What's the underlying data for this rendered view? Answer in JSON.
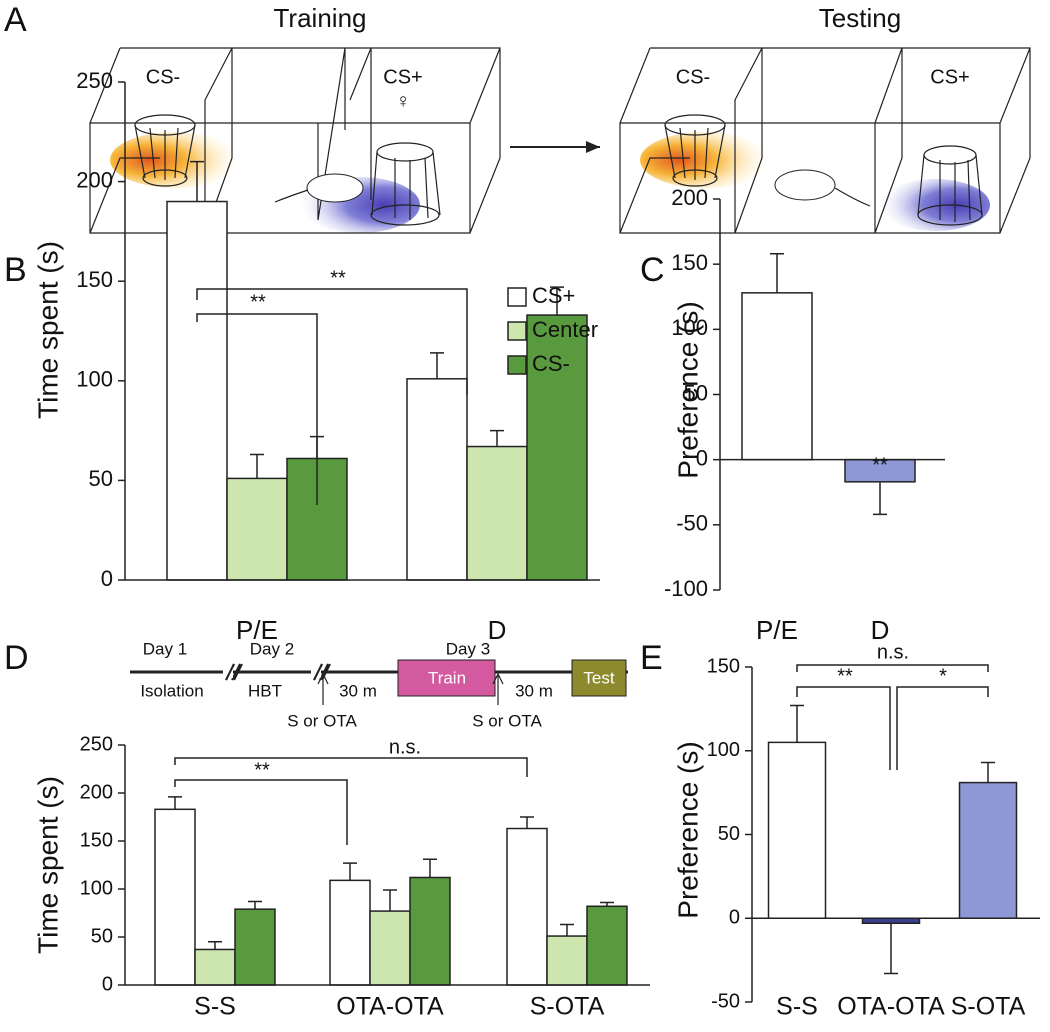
{
  "panel_labels": [
    "A",
    "B",
    "C",
    "D",
    "E"
  ],
  "diagram": {
    "title_training": "Training",
    "title_testing": "Testing",
    "training_cs_minus": "CS-",
    "training_cs_plus": "CS+",
    "female_symbol": "♀",
    "testing_cs_minus": "CS-",
    "testing_cs_plus": "CS+"
  },
  "timeline": {
    "day1": "Day 1",
    "day2": "Day 2",
    "day3": "Day 3",
    "isolation": "Isolation",
    "hbt": "HBT",
    "injection1": "S or OTA",
    "wait1": "30 m",
    "train": "Train",
    "wait2": "30 m",
    "injection2": "S or OTA",
    "test": "Test"
  },
  "chart_data": [
    {
      "type": "bar",
      "ylabel": "Time spent (s)",
      "categories": [
        "P/E",
        "D"
      ],
      "series": [
        {
          "name": "CS+",
          "color": "#ffffff",
          "values": [
            190,
            101
          ],
          "errors": [
            20,
            13
          ]
        },
        {
          "name": "Center",
          "color": "#cde6b0",
          "values": [
            51,
            67
          ],
          "errors": [
            12,
            8
          ]
        },
        {
          "name": "CS-",
          "color": "#5a9a3e",
          "values": [
            61,
            133
          ],
          "errors": [
            11,
            14
          ]
        }
      ],
      "ylim": [
        0,
        250
      ],
      "yticks": [
        0,
        50,
        100,
        150,
        200,
        250
      ],
      "legend": "top-right",
      "annotations": [
        "**",
        "**"
      ]
    },
    {
      "type": "bar",
      "ylabel": "Preference (s)",
      "categories": [
        "P/E",
        "D"
      ],
      "values": [
        128,
        -17
      ],
      "errors": [
        30,
        25
      ],
      "colors": [
        "#ffffff",
        "#8f98d6"
      ],
      "ylim": [
        -100,
        200
      ],
      "yticks": [
        -100,
        -50,
        0,
        50,
        100,
        150,
        200
      ],
      "annotations": [
        "**"
      ]
    },
    {
      "type": "bar",
      "ylabel": "Time spent (s)",
      "categories": [
        "S-S",
        "OTA-OTA",
        "S-OTA"
      ],
      "series": [
        {
          "name": "CS+",
          "color": "#ffffff",
          "values": [
            183,
            109,
            163
          ],
          "errors": [
            13,
            18,
            12
          ]
        },
        {
          "name": "Center",
          "color": "#cde6b0",
          "values": [
            37,
            77,
            51
          ],
          "errors": [
            8,
            22,
            12
          ]
        },
        {
          "name": "CS-",
          "color": "#5a9a3e",
          "values": [
            79,
            112,
            82
          ],
          "errors": [
            8,
            19,
            4
          ]
        }
      ],
      "ylim": [
        0,
        250
      ],
      "yticks": [
        0,
        50,
        100,
        150,
        200,
        250
      ],
      "annotations": [
        "**",
        "n.s."
      ]
    },
    {
      "type": "bar",
      "ylabel": "Preference (s)",
      "categories": [
        "S-S",
        "OTA-OTA",
        "S-OTA"
      ],
      "values": [
        105,
        -3,
        81
      ],
      "errors": [
        22,
        30,
        12
      ],
      "colors": [
        "#ffffff",
        "#3c3f8f",
        "#8f98d6"
      ],
      "ylim": [
        -50,
        150
      ],
      "yticks": [
        -50,
        0,
        50,
        100,
        150
      ],
      "annotations": [
        "n.s.",
        "**",
        "*"
      ]
    }
  ]
}
